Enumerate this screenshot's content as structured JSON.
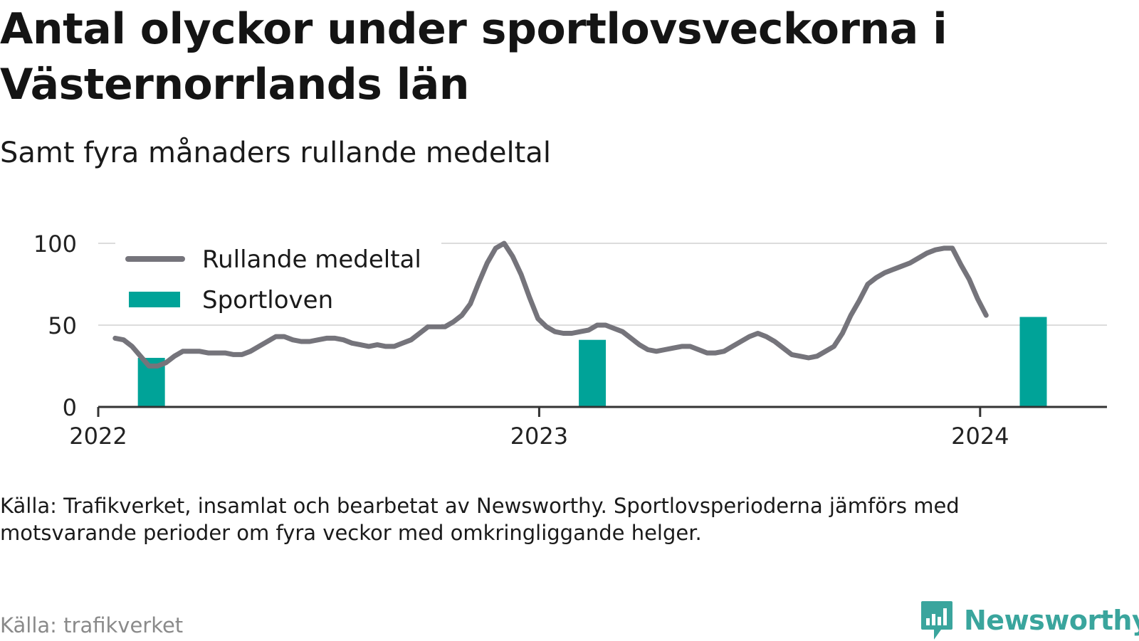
{
  "title": "Antal olyckor under sportlovsveckorna i Västernorrlands län",
  "subtitle": "Samt fyra månaders rullande medeltal",
  "note": "Källa: Trafikverket, insamlat och bearbetat av Newsworthy. Sportlovsperioderna jämförs med motsvarande perioder om fyra veckor med omkringliggande helger.",
  "source": "Källa: trafikverket",
  "brand": {
    "name": "Newsworthy",
    "icon": "newsworthy-logo-icon",
    "color": "#3aa59d"
  },
  "colors": {
    "line": "#75747b",
    "bars": "#00a398",
    "grid": "#dcdcdc",
    "axis": "#333333"
  },
  "chart_data": {
    "type": "bar",
    "x_axis": {
      "type": "time",
      "range": [
        "2022-01-01",
        "2024-04-15"
      ],
      "ticks": [
        "2022",
        "2023",
        "2024"
      ]
    },
    "y_axis": {
      "range": [
        0,
        100
      ],
      "ticks": [
        0,
        50,
        100
      ]
    },
    "grid": "horizontal",
    "legend": "top-left",
    "series": [
      {
        "name": "Rullande medeltal",
        "type": "line",
        "points": [
          [
            "2022-01-15",
            42
          ],
          [
            "2022-01-22",
            41
          ],
          [
            "2022-01-29",
            37
          ],
          [
            "2022-02-05",
            31
          ],
          [
            "2022-02-12",
            25
          ],
          [
            "2022-02-19",
            25
          ],
          [
            "2022-02-26",
            27
          ],
          [
            "2022-03-05",
            31
          ],
          [
            "2022-03-12",
            34
          ],
          [
            "2022-03-19",
            34
          ],
          [
            "2022-03-26",
            34
          ],
          [
            "2022-04-02",
            33
          ],
          [
            "2022-04-09",
            33
          ],
          [
            "2022-04-16",
            33
          ],
          [
            "2022-04-23",
            32
          ],
          [
            "2022-04-30",
            32
          ],
          [
            "2022-05-07",
            34
          ],
          [
            "2022-05-14",
            37
          ],
          [
            "2022-05-21",
            40
          ],
          [
            "2022-05-28",
            43
          ],
          [
            "2022-06-04",
            43
          ],
          [
            "2022-06-11",
            41
          ],
          [
            "2022-06-18",
            40
          ],
          [
            "2022-06-25",
            40
          ],
          [
            "2022-07-02",
            41
          ],
          [
            "2022-07-09",
            42
          ],
          [
            "2022-07-16",
            42
          ],
          [
            "2022-07-23",
            41
          ],
          [
            "2022-07-30",
            39
          ],
          [
            "2022-08-06",
            38
          ],
          [
            "2022-08-13",
            37
          ],
          [
            "2022-08-20",
            38
          ],
          [
            "2022-08-27",
            37
          ],
          [
            "2022-09-03",
            37
          ],
          [
            "2022-09-10",
            39
          ],
          [
            "2022-09-17",
            41
          ],
          [
            "2022-09-24",
            45
          ],
          [
            "2022-10-01",
            49
          ],
          [
            "2022-10-08",
            49
          ],
          [
            "2022-10-15",
            49
          ],
          [
            "2022-10-22",
            52
          ],
          [
            "2022-10-29",
            56
          ],
          [
            "2022-11-05",
            63
          ],
          [
            "2022-11-12",
            76
          ],
          [
            "2022-11-19",
            88
          ],
          [
            "2022-11-26",
            97
          ],
          [
            "2022-12-03",
            100
          ],
          [
            "2022-12-10",
            92
          ],
          [
            "2022-12-17",
            81
          ],
          [
            "2022-12-24",
            67
          ],
          [
            "2022-12-31",
            54
          ],
          [
            "2023-01-07",
            49
          ],
          [
            "2023-01-14",
            46
          ],
          [
            "2023-01-21",
            45
          ],
          [
            "2023-01-28",
            45
          ],
          [
            "2023-02-04",
            46
          ],
          [
            "2023-02-11",
            47
          ],
          [
            "2023-02-18",
            50
          ],
          [
            "2023-02-25",
            50
          ],
          [
            "2023-03-04",
            48
          ],
          [
            "2023-03-11",
            46
          ],
          [
            "2023-03-18",
            42
          ],
          [
            "2023-03-25",
            38
          ],
          [
            "2023-04-01",
            35
          ],
          [
            "2023-04-08",
            34
          ],
          [
            "2023-04-15",
            35
          ],
          [
            "2023-04-22",
            36
          ],
          [
            "2023-04-29",
            37
          ],
          [
            "2023-05-06",
            37
          ],
          [
            "2023-05-13",
            35
          ],
          [
            "2023-05-20",
            33
          ],
          [
            "2023-05-27",
            33
          ],
          [
            "2023-06-03",
            34
          ],
          [
            "2023-06-10",
            37
          ],
          [
            "2023-06-17",
            40
          ],
          [
            "2023-06-24",
            43
          ],
          [
            "2023-07-01",
            45
          ],
          [
            "2023-07-08",
            43
          ],
          [
            "2023-07-15",
            40
          ],
          [
            "2023-07-22",
            36
          ],
          [
            "2023-07-29",
            32
          ],
          [
            "2023-08-05",
            31
          ],
          [
            "2023-08-12",
            30
          ],
          [
            "2023-08-19",
            31
          ],
          [
            "2023-08-26",
            34
          ],
          [
            "2023-09-02",
            37
          ],
          [
            "2023-09-09",
            45
          ],
          [
            "2023-09-16",
            56
          ],
          [
            "2023-09-23",
            65
          ],
          [
            "2023-09-30",
            75
          ],
          [
            "2023-10-07",
            79
          ],
          [
            "2023-10-14",
            82
          ],
          [
            "2023-10-21",
            84
          ],
          [
            "2023-10-28",
            86
          ],
          [
            "2023-11-04",
            88
          ],
          [
            "2023-11-11",
            91
          ],
          [
            "2023-11-18",
            94
          ],
          [
            "2023-11-25",
            96
          ],
          [
            "2023-12-02",
            97
          ],
          [
            "2023-12-09",
            97
          ],
          [
            "2023-12-16",
            87
          ],
          [
            "2023-12-23",
            78
          ],
          [
            "2023-12-30",
            66
          ],
          [
            "2024-01-06",
            56
          ]
        ]
      },
      {
        "name": "Sportloven",
        "type": "bar",
        "points": [
          [
            "2022-02-14",
            30
          ],
          [
            "2023-02-14",
            41
          ],
          [
            "2024-02-14",
            55
          ]
        ]
      }
    ]
  }
}
